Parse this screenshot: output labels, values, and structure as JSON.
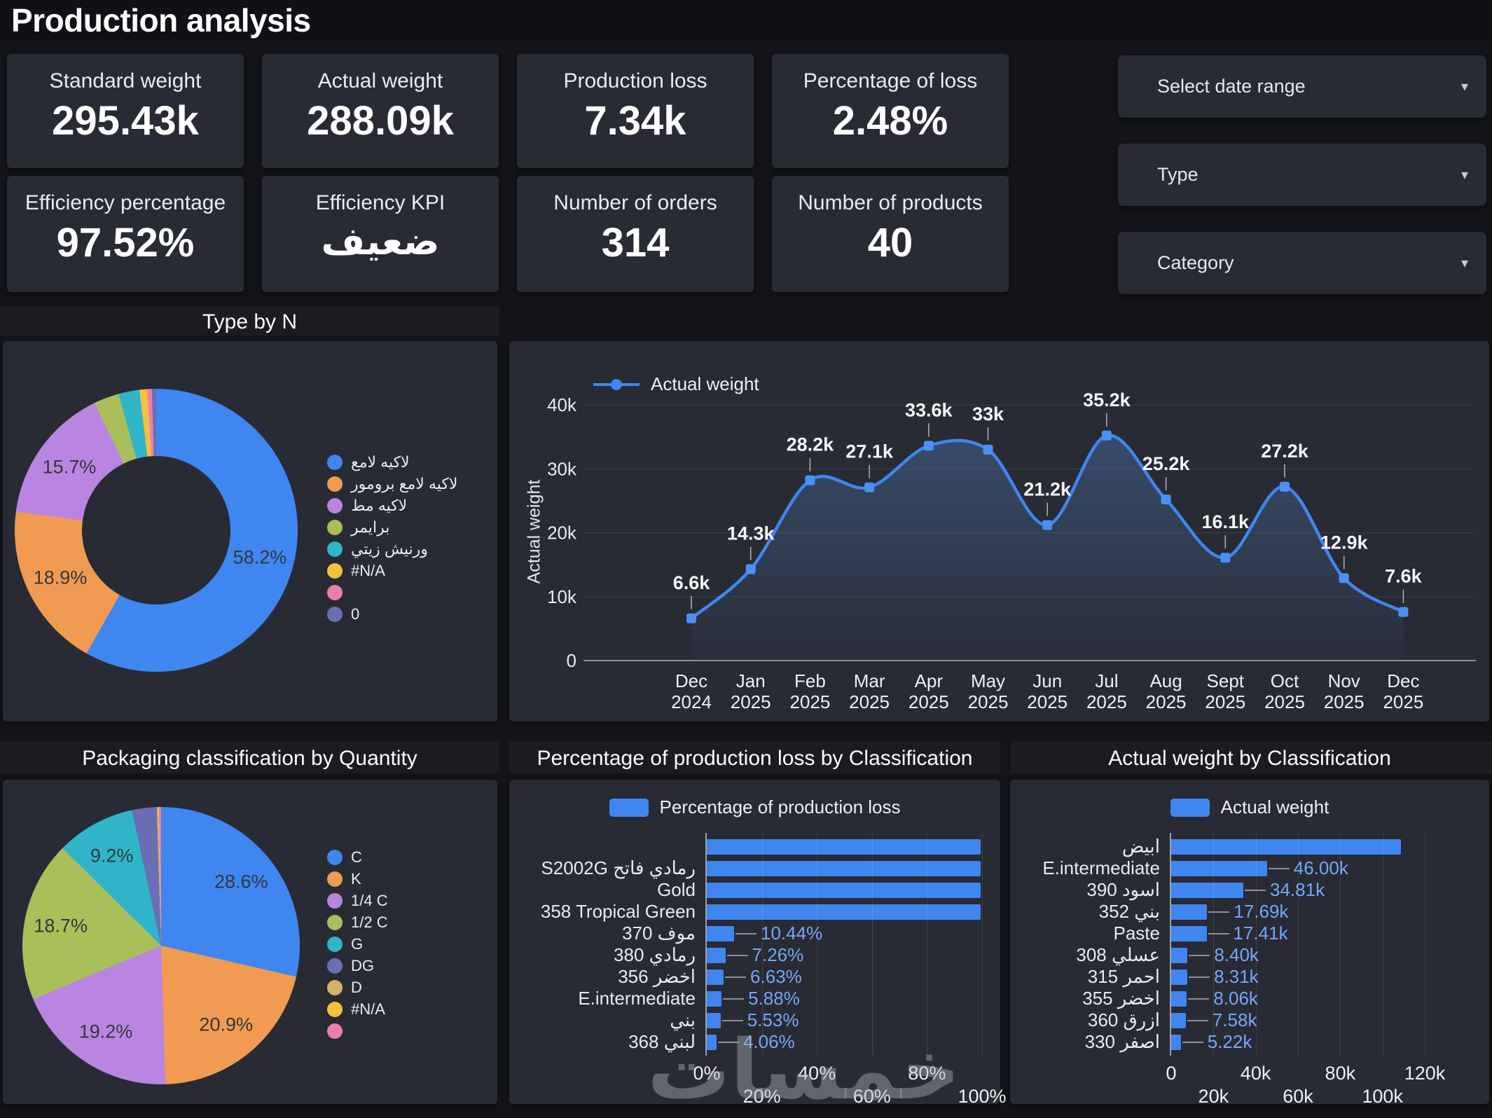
{
  "title": "Production analysis",
  "kpi_cards": [
    {
      "label": "Standard weight",
      "value": "295.43k"
    },
    {
      "label": "Actual weight",
      "value": "288.09k"
    },
    {
      "label": "Production loss",
      "value": "7.34k"
    },
    {
      "label": "Percentage of loss",
      "value": "2.48%"
    },
    {
      "label": "Efficiency percentage",
      "value": "97.52%"
    },
    {
      "label": "Efficiency KPI",
      "value": "ضعيف"
    },
    {
      "label": "Number of orders",
      "value": "314"
    },
    {
      "label": "Number of products",
      "value": "40"
    }
  ],
  "slicers": [
    {
      "label": "Select date range"
    },
    {
      "label": "Type"
    },
    {
      "label": "Category"
    }
  ],
  "watermark": "خمسات",
  "colors": {
    "page_bg": "#131419",
    "card_bg": "#282b34",
    "accent_blue": "#3f86f0",
    "orange": "#f09b51",
    "purple": "#ba85e0",
    "green": "#a9bf5a",
    "teal": "#30b5c8",
    "yellow": "#f3c03f",
    "pink": "#ea7fae",
    "indigo": "#6a6fb5",
    "tan": "#d8b06a",
    "value_label_blue": "#76a6f8"
  },
  "chart_data": [
    {
      "id": "type-by-n",
      "type": "donut",
      "title": "Type by N",
      "slices": [
        {
          "label": "لاكيه لامع",
          "value": 58.2,
          "pct_label": "58.2%",
          "color": "#3f86f0"
        },
        {
          "label": "لاكيه لامع برومور",
          "value": 18.9,
          "pct_label": "18.9%",
          "color": "#f09b51"
        },
        {
          "label": "لاكيه مط",
          "value": 15.7,
          "pct_label": "15.7%",
          "color": "#ba85e0"
        },
        {
          "label": "برايمر",
          "value": 2.9,
          "pct_label": "",
          "color": "#a9bf5a"
        },
        {
          "label": "ورنيش زيتي",
          "value": 2.4,
          "pct_label": "",
          "color": "#30b5c8"
        },
        {
          "label": "#N/A",
          "value": 0.9,
          "pct_label": "",
          "color": "#f3c03f"
        },
        {
          "label": "",
          "value": 0.5,
          "pct_label": "",
          "color": "#ea7fae"
        },
        {
          "label": "0",
          "value": 0.5,
          "pct_label": "",
          "color": "#6a6fb5"
        }
      ]
    },
    {
      "id": "actual-weight-trend",
      "type": "line",
      "legend": "Actual weight",
      "ylabel": "Actual weight",
      "yticks": [
        "0",
        "10k",
        "20k",
        "30k",
        "40k"
      ],
      "ymax_k": 40,
      "x": [
        "Dec 2024",
        "Jan 2025",
        "Feb 2025",
        "Mar 2025",
        "Apr 2025",
        "May 2025",
        "Jun 2025",
        "Jul 2025",
        "Aug 2025",
        "Sept 2025",
        "Oct 2025",
        "Nov 2025",
        "Dec 2025"
      ],
      "values_k": [
        6.6,
        14.3,
        28.2,
        27.1,
        33.6,
        33,
        21.2,
        35.2,
        25.2,
        16.1,
        27.2,
        12.9,
        7.6
      ],
      "point_labels": [
        "6.6k",
        "14.3k",
        "28.2k",
        "27.1k",
        "33.6k",
        "33k",
        "21.2k",
        "35.2k",
        "25.2k",
        "16.1k",
        "27.2k",
        "12.9k",
        "7.6k"
      ],
      "line_color": "#3f86f0",
      "grid": true,
      "legend_position": "top-left"
    },
    {
      "id": "packaging-pie",
      "type": "pie",
      "title": "Packaging classification by Quantity",
      "slices": [
        {
          "label": "C",
          "value": 28.6,
          "pct_label": "28.6%",
          "color": "#3f86f0"
        },
        {
          "label": "K",
          "value": 20.9,
          "pct_label": "20.9%",
          "color": "#f09b51"
        },
        {
          "label": "1/4 C",
          "value": 19.2,
          "pct_label": "19.2%",
          "color": "#ba85e0"
        },
        {
          "label": "1/2 C",
          "value": 18.7,
          "pct_label": "18.7%",
          "color": "#a9bf5a"
        },
        {
          "label": "G",
          "value": 9.2,
          "pct_label": "9.2%",
          "color": "#30b5c8"
        },
        {
          "label": "DG",
          "value": 2.9,
          "pct_label": "",
          "color": "#6a6fb5"
        },
        {
          "label": "D",
          "value": 0.15,
          "pct_label": "",
          "color": "#d8b06a"
        },
        {
          "label": "#N/A",
          "value": 0.1,
          "pct_label": "",
          "color": "#f3c03f"
        },
        {
          "label": "",
          "value": 0.15,
          "pct_label": "",
          "color": "#ea7fae"
        }
      ]
    },
    {
      "id": "loss-by-classification",
      "type": "bar",
      "orientation": "horizontal",
      "title": "Percentage of production loss by Classification",
      "legend": "Percentage of production loss",
      "categories": [
        "",
        "رمادي فاتح S2002G",
        "Gold",
        "358 Tropical Green",
        "موف 370",
        "رمادي 380",
        "اخضر 356",
        "E.intermediate",
        "بني",
        "لبني 368"
      ],
      "values_pct": [
        100,
        100,
        100,
        100,
        10.44,
        7.26,
        6.63,
        5.88,
        5.53,
        4.06
      ],
      "value_labels": [
        "",
        "",
        "",
        "",
        "10.44%",
        "7.26%",
        "6.63%",
        "5.88%",
        "5.53%",
        "4.06%"
      ],
      "xticks": [
        "0%",
        "20%",
        "40%",
        "60%",
        "80%",
        "100%"
      ],
      "xmax_pct": 100,
      "bar_color": "#3f86f0"
    },
    {
      "id": "weight-by-classification",
      "type": "bar",
      "orientation": "horizontal",
      "title": "Actual weight by Classification",
      "legend": "Actual weight",
      "categories": [
        "ابيض",
        "E.intermediate",
        "اسود 390",
        "بني 352",
        "Paste",
        "عسلي 308",
        "احمر 315",
        "اخضر 355",
        "ازرق 360",
        "اصفر 330"
      ],
      "values_k": [
        109.5,
        46,
        34.81,
        17.69,
        17.41,
        8.4,
        8.31,
        8.06,
        7.58,
        5.22
      ],
      "value_labels": [
        "",
        "46.00k",
        "34.81k",
        "17.69k",
        "17.41k",
        "8.40k",
        "8.31k",
        "8.06k",
        "7.58k",
        "5.22k"
      ],
      "xticks": [
        "0",
        "20k",
        "40k",
        "60k",
        "80k",
        "100k",
        "120k"
      ],
      "xmax_k": 120,
      "bar_color": "#3f86f0"
    }
  ]
}
